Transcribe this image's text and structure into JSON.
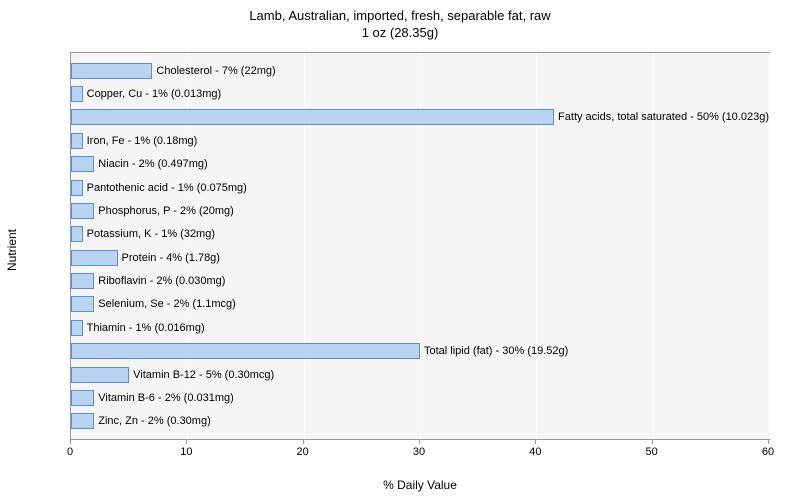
{
  "chart": {
    "type": "bar",
    "title_line1": "Lamb, Australian, imported, fresh, separable fat, raw",
    "title_line2": "1 oz (28.35g)",
    "title_fontsize": 13,
    "xlabel": "% Daily Value",
    "ylabel": "Nutrient",
    "label_fontsize": 12,
    "xlim": [
      0,
      60
    ],
    "xtick_step": 10,
    "xticks": [
      0,
      10,
      20,
      30,
      40,
      50,
      60
    ],
    "background_color": "#ffffff",
    "plot_background": "#f5f5f5",
    "grid_color": "#ffffff",
    "bar_color": "#b8d4f0",
    "bar_border_color": "#5a8fd6",
    "border_color": "#999999",
    "bar_label_fontsize": 11,
    "tick_fontsize": 11,
    "items": [
      {
        "label": "Cholesterol - 7% (22mg)",
        "value": 7
      },
      {
        "label": "Copper, Cu - 1% (0.013mg)",
        "value": 1
      },
      {
        "label": "Fatty acids, total saturated - 50% (10.023g)",
        "value": 50
      },
      {
        "label": "Iron, Fe - 1% (0.18mg)",
        "value": 1
      },
      {
        "label": "Niacin - 2% (0.497mg)",
        "value": 2
      },
      {
        "label": "Pantothenic acid - 1% (0.075mg)",
        "value": 1
      },
      {
        "label": "Phosphorus, P - 2% (20mg)",
        "value": 2
      },
      {
        "label": "Potassium, K - 1% (32mg)",
        "value": 1
      },
      {
        "label": "Protein - 4% (1.78g)",
        "value": 4
      },
      {
        "label": "Riboflavin - 2% (0.030mg)",
        "value": 2
      },
      {
        "label": "Selenium, Se - 2% (1.1mcg)",
        "value": 2
      },
      {
        "label": "Thiamin - 1% (0.016mg)",
        "value": 1
      },
      {
        "label": "Total lipid (fat) - 30% (19.52g)",
        "value": 30
      },
      {
        "label": "Vitamin B-12 - 5% (0.30mcg)",
        "value": 5
      },
      {
        "label": "Vitamin B-6 - 2% (0.031mg)",
        "value": 2
      },
      {
        "label": "Zinc, Zn - 2% (0.30mg)",
        "value": 2
      }
    ]
  }
}
